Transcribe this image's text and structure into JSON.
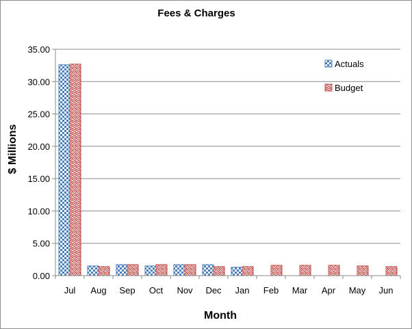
{
  "chart_data": {
    "type": "bar",
    "title": "Fees & Charges",
    "xlabel": "Month",
    "ylabel": "$ Millions",
    "categories": [
      "Jul",
      "Aug",
      "Sep",
      "Oct",
      "Nov",
      "Dec",
      "Jan",
      "Feb",
      "Mar",
      "Apr",
      "May",
      "Jun"
    ],
    "ylim": [
      0,
      35
    ],
    "yticks": [
      "0.00",
      "5.00",
      "10.00",
      "15.00",
      "20.00",
      "25.00",
      "30.00",
      "35.00"
    ],
    "grid": true,
    "legend_position": "top-right",
    "series": [
      {
        "name": "Actuals",
        "color": "#4a7ebb",
        "pattern": "checkerboard",
        "values": [
          32.6,
          1.5,
          1.7,
          1.5,
          1.7,
          1.7,
          1.3,
          null,
          null,
          null,
          null,
          null
        ]
      },
      {
        "name": "Budget",
        "color": "#c0504d",
        "pattern": "zigzag",
        "values": [
          32.7,
          1.4,
          1.7,
          1.7,
          1.7,
          1.4,
          1.4,
          1.6,
          1.6,
          1.6,
          1.5,
          1.4
        ]
      }
    ]
  }
}
